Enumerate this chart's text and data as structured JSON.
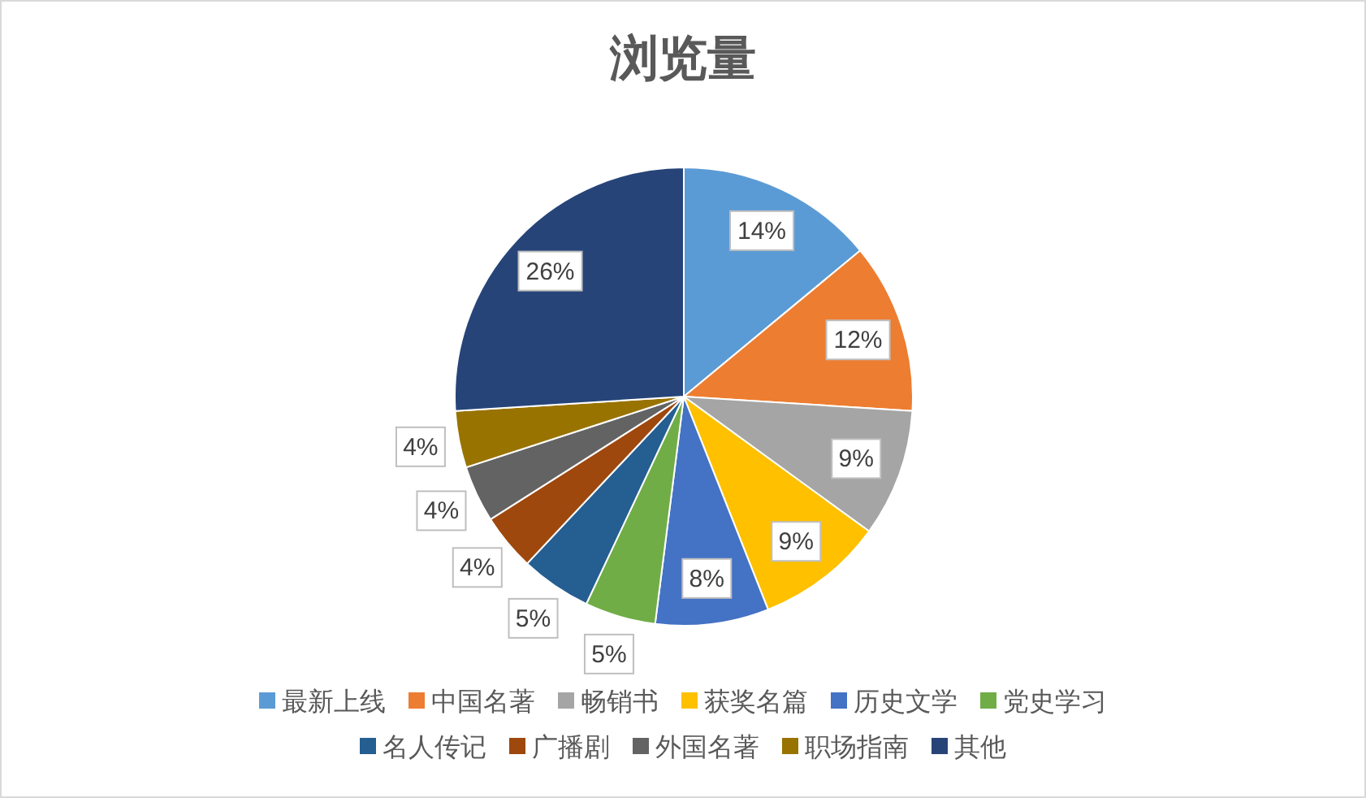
{
  "chart_data": {
    "type": "pie",
    "title": "浏览量",
    "categories": [
      "最新上线",
      "中国名著",
      "畅销书",
      "获奖名篇",
      "历史文学",
      "党史学习",
      "名人传记",
      "广播剧",
      "外国名著",
      "职场指南",
      "其他"
    ],
    "values": [
      14,
      12,
      9,
      9,
      8,
      5,
      5,
      4,
      4,
      4,
      26
    ],
    "value_labels": [
      "14%",
      "12%",
      "9%",
      "9%",
      "8%",
      "5%",
      "5%",
      "4%",
      "4%",
      "4%",
      "26%"
    ],
    "colors": [
      "#5b9bd5",
      "#ed7d31",
      "#a5a5a5",
      "#ffc000",
      "#4472c4",
      "#70ad47",
      "#255e91",
      "#9e480e",
      "#636363",
      "#997300",
      "#264478"
    ],
    "legend": "bottom"
  }
}
